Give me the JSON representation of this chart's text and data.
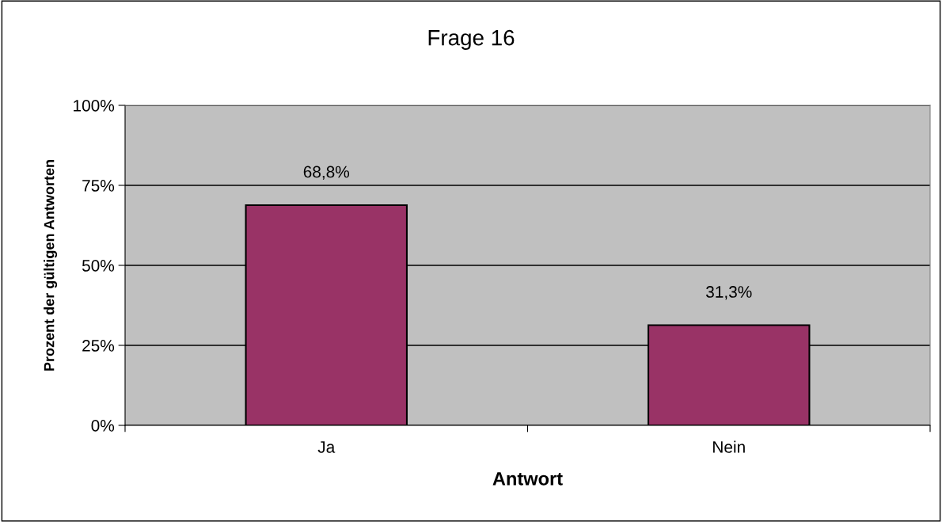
{
  "chart_data": {
    "type": "bar",
    "title": "Frage 16",
    "xlabel": "Antwort",
    "ylabel": "Prozent der gültigen Antworten",
    "categories": [
      "Ja",
      "Nein"
    ],
    "values": [
      68.8,
      31.3
    ],
    "color": "#993366",
    "value_labels": [
      "68,8%",
      "31,3%"
    ],
    "ylim": [
      0,
      100
    ],
    "yticks": [
      {
        "value": 0,
        "label": "0%"
      },
      {
        "value": 25,
        "label": "25%"
      },
      {
        "value": 50,
        "label": "50%"
      },
      {
        "value": 75,
        "label": "75%"
      },
      {
        "value": 100,
        "label": "100%"
      }
    ],
    "grid": "y"
  }
}
